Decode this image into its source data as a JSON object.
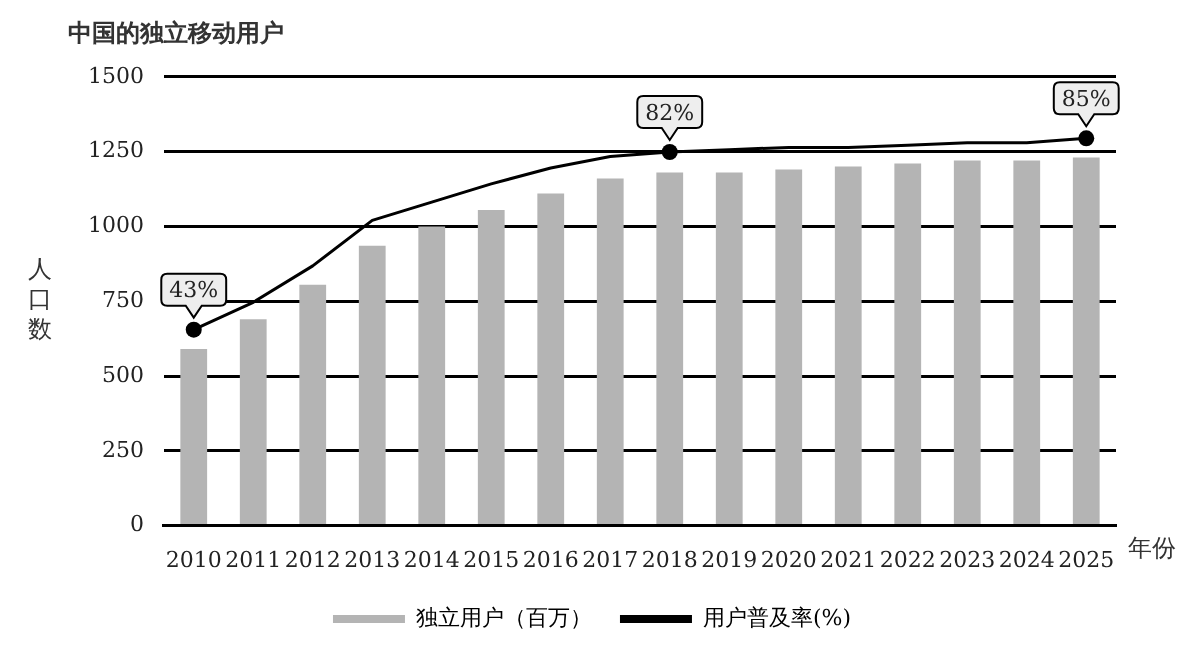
{
  "chart_data": {
    "type": "bar",
    "title": "中国的独立移动用户",
    "ylabel": "人口数",
    "xlabel": "年份",
    "categories": [
      "2010",
      "2011",
      "2012",
      "2013",
      "2014",
      "2015",
      "2016",
      "2017",
      "2018",
      "2019",
      "2020",
      "2021",
      "2022",
      "2023",
      "2024",
      "2025"
    ],
    "series": [
      {
        "name": "独立用户（百万）",
        "color": "#b4b4b4",
        "values": [
          590,
          690,
          805,
          935,
          1000,
          1055,
          1110,
          1160,
          1180,
          1180,
          1190,
          1200,
          1210,
          1220,
          1220,
          1230
        ]
      },
      {
        "name": "用户普及率(%)",
        "type": "line",
        "axis": "y2",
        "color": "#000000",
        "values": [
          43,
          49,
          57,
          67,
          71,
          75,
          78.5,
          81,
          82,
          82.5,
          83,
          83,
          83.5,
          84,
          84,
          85
        ],
        "value_labels": [
          "43%",
          null,
          null,
          null,
          null,
          null,
          null,
          null,
          "82%",
          null,
          null,
          null,
          null,
          null,
          null,
          "85%"
        ]
      }
    ],
    "ylim": [
      0,
      1500
    ],
    "yticks": [
      0,
      250,
      500,
      750,
      1000,
      1250,
      1500
    ],
    "y2lim": [
      0,
      98.5
    ],
    "grid": "y",
    "legend": "bottom"
  }
}
